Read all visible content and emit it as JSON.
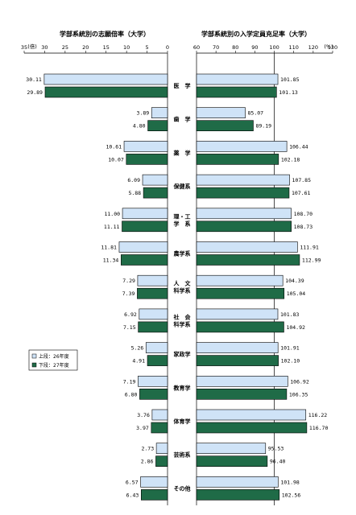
{
  "chart_data": [
    {
      "type": "bar",
      "orientation": "horizontal-reversed",
      "title": "学部系統別の志願倍率（大学）",
      "unit": "(倍)",
      "xlim": [
        0,
        35
      ],
      "ticks": [
        35,
        30,
        25,
        20,
        15,
        10,
        5,
        0
      ],
      "categories": [
        "医　学",
        "歯　学",
        "薬　学",
        "保健系",
        "理・工\n学　系",
        "農学系",
        "人　文\n科学系",
        "社　会\n科学系",
        "家政学",
        "教育学",
        "体育学",
        "芸術系",
        "その他"
      ],
      "series": [
        {
          "name": "上段：26年度",
          "values": [
            30.11,
            3.89,
            10.61,
            6.09,
            11.0,
            11.81,
            7.29,
            6.92,
            5.26,
            7.19,
            3.76,
            2.73,
            6.57
          ],
          "labels": [
            "30.11",
            "3.89",
            "10.61",
            "6.09",
            "11.00",
            "11.81",
            "7.29",
            "6.92",
            "5.26",
            "7.19",
            "3.76",
            "2.73",
            "6.57"
          ]
        },
        {
          "name": "下段：27年度",
          "values": [
            29.89,
            4.8,
            10.07,
            5.88,
            11.11,
            11.34,
            7.39,
            7.15,
            4.91,
            6.8,
            3.97,
            2.86,
            6.43
          ],
          "labels": [
            "29.89",
            "4.80",
            "10.07",
            "5.88",
            "11.11",
            "11.34",
            "7.39",
            "7.15",
            "4.91",
            "6.80",
            "3.97",
            "2.86",
            "6.43"
          ]
        }
      ]
    },
    {
      "type": "bar",
      "orientation": "horizontal",
      "title": "学部系統別の入学定員充足率（大学）",
      "unit": "(%)",
      "xlim": [
        60,
        130
      ],
      "ticks": [
        60,
        70,
        80,
        90,
        100,
        110,
        120,
        130
      ],
      "series": [
        {
          "name": "上段：26年度",
          "values": [
            101.85,
            85.07,
            106.44,
            107.85,
            108.7,
            111.91,
            104.39,
            101.83,
            101.91,
            106.92,
            116.22,
            95.53,
            101.98
          ],
          "labels": [
            "101.85",
            "85.07",
            "106.44",
            "107.85",
            "108.70",
            "111.91",
            "104.39",
            "101.83",
            "101.91",
            "106.92",
            "116.22",
            "95.53",
            "101.98"
          ]
        },
        {
          "name": "下段：27年度",
          "values": [
            101.13,
            89.19,
            102.18,
            107.61,
            108.73,
            112.99,
            105.04,
            104.92,
            102.1,
            106.35,
            116.7,
            96.4,
            102.56
          ],
          "labels": [
            "101.13",
            "89.19",
            "102.18",
            "107.61",
            "108.73",
            "112.99",
            "105.04",
            "104.92",
            "102.10",
            "106.35",
            "116.70",
            "96.40",
            "102.56"
          ]
        }
      ]
    }
  ],
  "legend": {
    "items": [
      {
        "label": "上段：26年度",
        "color": "#cfe3f7"
      },
      {
        "label": "下段：27年度",
        "color": "#1f6b47"
      }
    ]
  },
  "colors": {
    "series_26": "#cfe3f7",
    "series_27": "#1f6b47",
    "stroke": "#000000"
  }
}
